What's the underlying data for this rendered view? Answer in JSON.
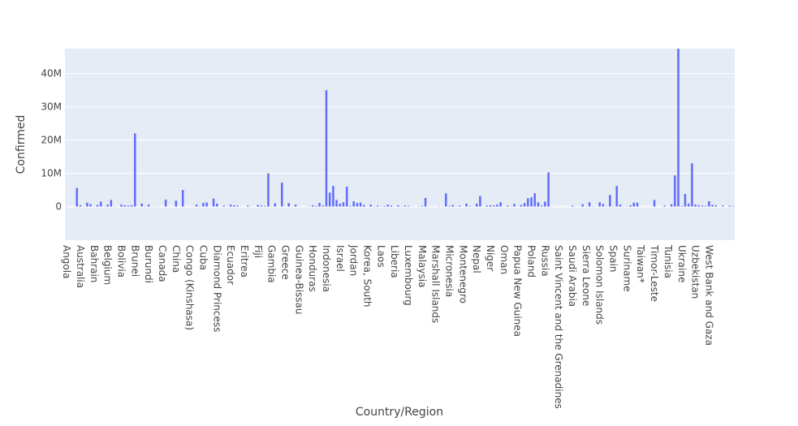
{
  "chart_data": {
    "type": "bar",
    "xlabel": "Country/Region",
    "ylabel": "Confirmed",
    "color": "#636efa",
    "grid": true,
    "categories": [
      "Angola",
      null,
      null,
      null,
      "Australia",
      null,
      null,
      null,
      "Bahrain",
      null,
      null,
      null,
      "Belgium",
      null,
      null,
      null,
      "Bolivia",
      null,
      null,
      null,
      "Brunei",
      null,
      null,
      null,
      "Burundi",
      null,
      null,
      null,
      "Canada",
      null,
      null,
      null,
      "China",
      null,
      null,
      null,
      "Congo (Kinshasa)",
      null,
      null,
      null,
      "Cuba",
      null,
      null,
      null,
      "Diamond Princess",
      null,
      null,
      null,
      "Ecuador",
      null,
      null,
      null,
      "Eritrea",
      null,
      null,
      null,
      "Fiji",
      null,
      null,
      null,
      "Gambia",
      null,
      null,
      null,
      "Greece",
      null,
      null,
      null,
      "Guinea-Bissau",
      null,
      null,
      null,
      "Honduras",
      null,
      null,
      null,
      "Indonesia",
      null,
      null,
      null,
      "Israel",
      null,
      null,
      null,
      "Jordan",
      null,
      null,
      null,
      "Korea, South",
      null,
      null,
      null,
      "Laos",
      null,
      null,
      null,
      "Liberia",
      null,
      null,
      null,
      "Luxembourg",
      null,
      null,
      null,
      "Malaysia",
      null,
      null,
      null,
      "Marshall Islands",
      null,
      null,
      null,
      "Micronesia",
      null,
      null,
      null,
      "Montenegro",
      null,
      null,
      null,
      "Nepal",
      null,
      null,
      null,
      "Niger",
      null,
      null,
      null,
      "Oman",
      null,
      null,
      null,
      "Papua New Guinea",
      null,
      null,
      null,
      "Poland",
      null,
      null,
      null,
      "Russia",
      null,
      null,
      null,
      "Saint Vincent and the Grenadines",
      null,
      null,
      null,
      "Saudi Arabia",
      null,
      null,
      null,
      "Sierra Leone",
      null,
      null,
      null,
      "Solomon Islands",
      null,
      null,
      null,
      "Spain",
      null,
      null,
      null,
      "Suriname",
      null,
      null,
      null,
      "Taiwan*",
      null,
      null,
      null,
      "Timor-Leste",
      null,
      null,
      null,
      "Tunisia",
      null,
      null,
      null,
      "Ukraine",
      null,
      null,
      null,
      "Uzbekistan",
      null,
      null,
      null,
      "West Bank and Gaza",
      null,
      null,
      null,
      null,
      null,
      null,
      null
    ],
    "values": [
      100000,
      10000,
      9000,
      5600000,
      450000,
      30000,
      1200000,
      700000,
      40000,
      500000,
      1500000,
      60000,
      600000,
      2000000,
      70000,
      30000,
      600000,
      400000,
      300000,
      400000,
      22000000,
      30000,
      900000,
      100000,
      600000,
      50000,
      100000,
      50000,
      20000,
      2100000,
      50000,
      10000,
      1800000,
      20000,
      5000000,
      20000,
      30000,
      50000,
      600000,
      100000,
      1100000,
      1200000,
      20000,
      2400000,
      900000,
      20000,
      300000,
      50000,
      600000,
      400000,
      300000,
      50000,
      20000,
      300000,
      60000,
      20000,
      500000,
      300000,
      200000,
      10000000,
      70000,
      1000000,
      50000,
      7200000,
      50000,
      1100000,
      40000,
      600000,
      40000,
      30000,
      30000,
      100000,
      400000,
      200000,
      1100000,
      300000,
      35000000,
      4200000,
      6200000,
      2000000,
      900000,
      1300000,
      6000000,
      200000,
      1600000,
      1100000,
      1200000,
      500000,
      40000,
      600000,
      100000,
      300000,
      100000,
      200000,
      600000,
      300000,
      50000,
      400000,
      60000,
      300000,
      200000,
      60000,
      30000,
      100000,
      200000,
      2600000,
      40000,
      30000,
      20000,
      100000,
      70000,
      4000000,
      200000,
      500000,
      100000,
      300000,
      10000,
      900000,
      200000,
      50000,
      900000,
      3200000,
      20000,
      300000,
      400000,
      300000,
      600000,
      1300000,
      40000,
      300000,
      60000,
      800000,
      50000,
      500000,
      1100000,
      2500000,
      2800000,
      4000000,
      1300000,
      300000,
      1500000,
      10300000,
      40000,
      30000,
      20000,
      10000,
      30000,
      20000,
      300000,
      50000,
      30000,
      700000,
      30000,
      1300000,
      100000,
      30000,
      1300000,
      800000,
      100000,
      3500000,
      100000,
      6200000,
      600000,
      60000,
      100000,
      400000,
      1200000,
      1200000,
      20000,
      30000,
      10000,
      30000,
      2000000,
      30000,
      20000,
      300000,
      10000,
      700000,
      9400000,
      47500000,
      170000,
      3800000,
      900000,
      13000000,
      600000,
      400000,
      300000,
      200000,
      1600000,
      500000,
      400000,
      30000,
      300000,
      20000,
      300000,
      200000
    ],
    "ylim": [
      -10100000,
      47500000
    ],
    "yticks": [
      0,
      {
        "value": 10000000,
        "label": "10M"
      },
      {
        "value": 20000000,
        "label": "20M"
      },
      {
        "value": 30000000,
        "label": "30M"
      },
      {
        "value": 40000000,
        "label": "40M"
      }
    ]
  }
}
